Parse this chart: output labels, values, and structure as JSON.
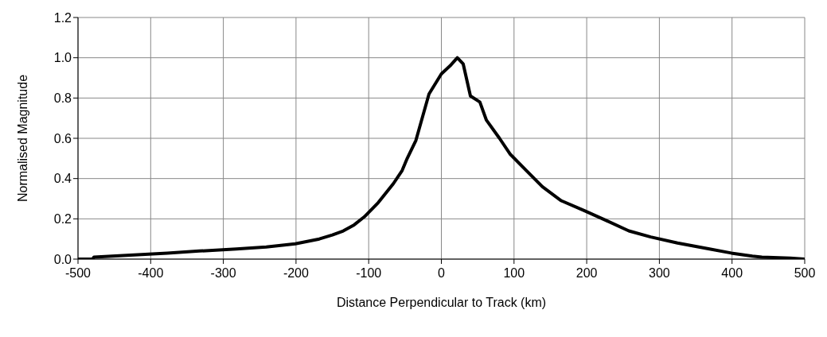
{
  "chart_data": {
    "type": "line",
    "xlabel": "Distance Perpendicular to Track (km)",
    "ylabel": "Normalised Magnitude",
    "x": [
      -500,
      -480,
      -478,
      -428,
      -377,
      -333,
      -282,
      -241,
      -201,
      -168,
      -150,
      -135,
      -120,
      -106,
      -87,
      -66,
      -54,
      -47,
      -35,
      -17,
      0,
      12,
      22,
      30,
      40,
      53,
      62,
      80,
      95,
      117,
      139,
      165,
      197,
      228,
      258,
      288,
      325,
      369,
      399,
      428,
      441,
      480,
      500
    ],
    "series": [
      {
        "color": "#000000",
        "values": [
          0,
          0,
          0.01,
          0.02,
          0.03,
          0.04,
          0.05,
          0.06,
          0.076,
          0.1,
          0.12,
          0.14,
          0.17,
          0.21,
          0.28,
          0.375,
          0.44,
          0.5,
          0.59,
          0.82,
          0.92,
          0.96,
          1.0,
          0.97,
          0.81,
          0.78,
          0.69,
          0.6,
          0.52,
          0.44,
          0.36,
          0.29,
          0.24,
          0.19,
          0.14,
          0.11,
          0.08,
          0.05,
          0.03,
          0.015,
          0.01,
          0.005,
          0
        ]
      }
    ],
    "xlim": [
      -500,
      500
    ],
    "xticks": [
      -500,
      -400,
      -300,
      -200,
      -100,
      0,
      100,
      200,
      300,
      400,
      500
    ],
    "ylim": [
      0,
      1.2
    ],
    "yticks": [
      {
        "value": 0,
        "label": "0.0"
      },
      {
        "value": 0.2,
        "label": "0.2"
      },
      {
        "value": 0.4,
        "label": "0.4"
      },
      {
        "value": 0.6,
        "label": "0.6"
      },
      {
        "value": 0.8,
        "label": "0.8"
      },
      {
        "value": 1,
        "label": "1.0"
      },
      {
        "value": 1.2,
        "label": "1.2"
      }
    ],
    "grid": true,
    "marker": "none",
    "line_style": "solid",
    "legend": false
  }
}
